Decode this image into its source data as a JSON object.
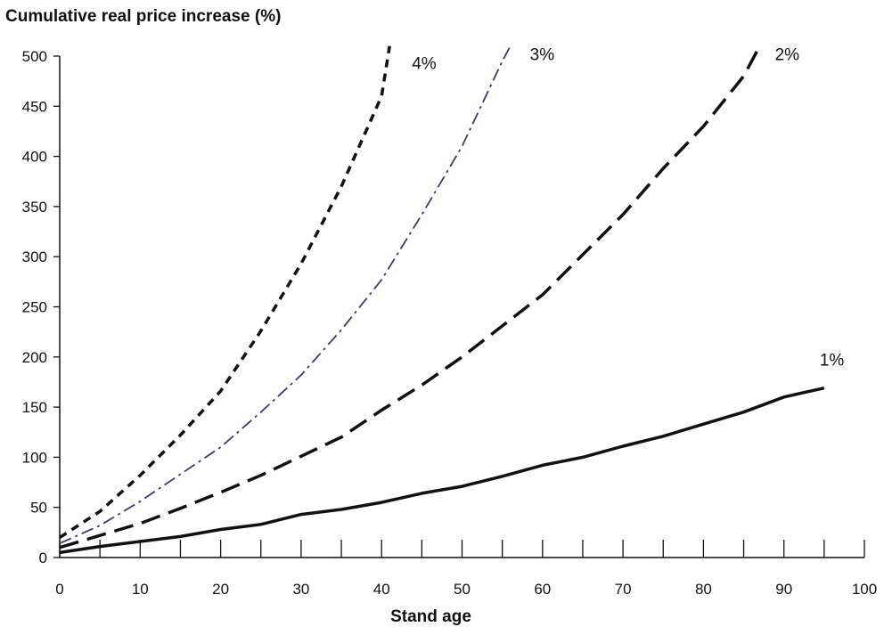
{
  "chart_data": {
    "type": "line",
    "title": "Cumulative real price increase (%)",
    "xlabel": "Stand age",
    "ylabel": "",
    "xlim": [
      0,
      100
    ],
    "ylim": [
      0,
      500
    ],
    "xticks": [
      0,
      10,
      20,
      30,
      40,
      50,
      60,
      70,
      80,
      90,
      100
    ],
    "yticks": [
      0,
      50,
      100,
      150,
      200,
      250,
      300,
      350,
      400,
      450,
      500
    ],
    "grid": false,
    "legend": "none (series labeled at line ends)",
    "series": [
      {
        "name": "1%",
        "style": "solid",
        "color": "#111111",
        "x": [
          0,
          5,
          10,
          15,
          20,
          25,
          30,
          35,
          40,
          45,
          50,
          55,
          60,
          65,
          70,
          75,
          80,
          85,
          90,
          95
        ],
        "y": [
          5,
          11,
          16,
          21,
          28,
          33,
          43,
          48,
          55,
          64,
          71,
          81,
          92,
          100,
          111,
          121,
          133,
          145,
          160,
          169
        ]
      },
      {
        "name": "2%",
        "style": "long-dash",
        "color": "#111111",
        "x": [
          0,
          5,
          10,
          15,
          20,
          25,
          30,
          35,
          40,
          45,
          50,
          55,
          60,
          65,
          70,
          75,
          80,
          85,
          87
        ],
        "y": [
          10,
          22,
          34,
          49,
          65,
          82,
          101,
          120,
          147,
          172,
          200,
          231,
          262,
          302,
          342,
          388,
          430,
          480,
          510
        ]
      },
      {
        "name": "3%",
        "style": "dash-dot",
        "color": "#3a3a6e",
        "x": [
          0,
          5,
          10,
          15,
          20,
          25,
          30,
          35,
          40,
          45,
          50,
          55,
          56
        ],
        "y": [
          14,
          32,
          56,
          83,
          110,
          145,
          182,
          227,
          277,
          342,
          410,
          495,
          510
        ]
      },
      {
        "name": "4%",
        "style": "short-dash",
        "color": "#111111",
        "x": [
          0,
          5,
          10,
          15,
          20,
          25,
          30,
          35,
          40,
          41
        ],
        "y": [
          20,
          46,
          82,
          122,
          166,
          226,
          293,
          370,
          460,
          510
        ]
      }
    ]
  }
}
